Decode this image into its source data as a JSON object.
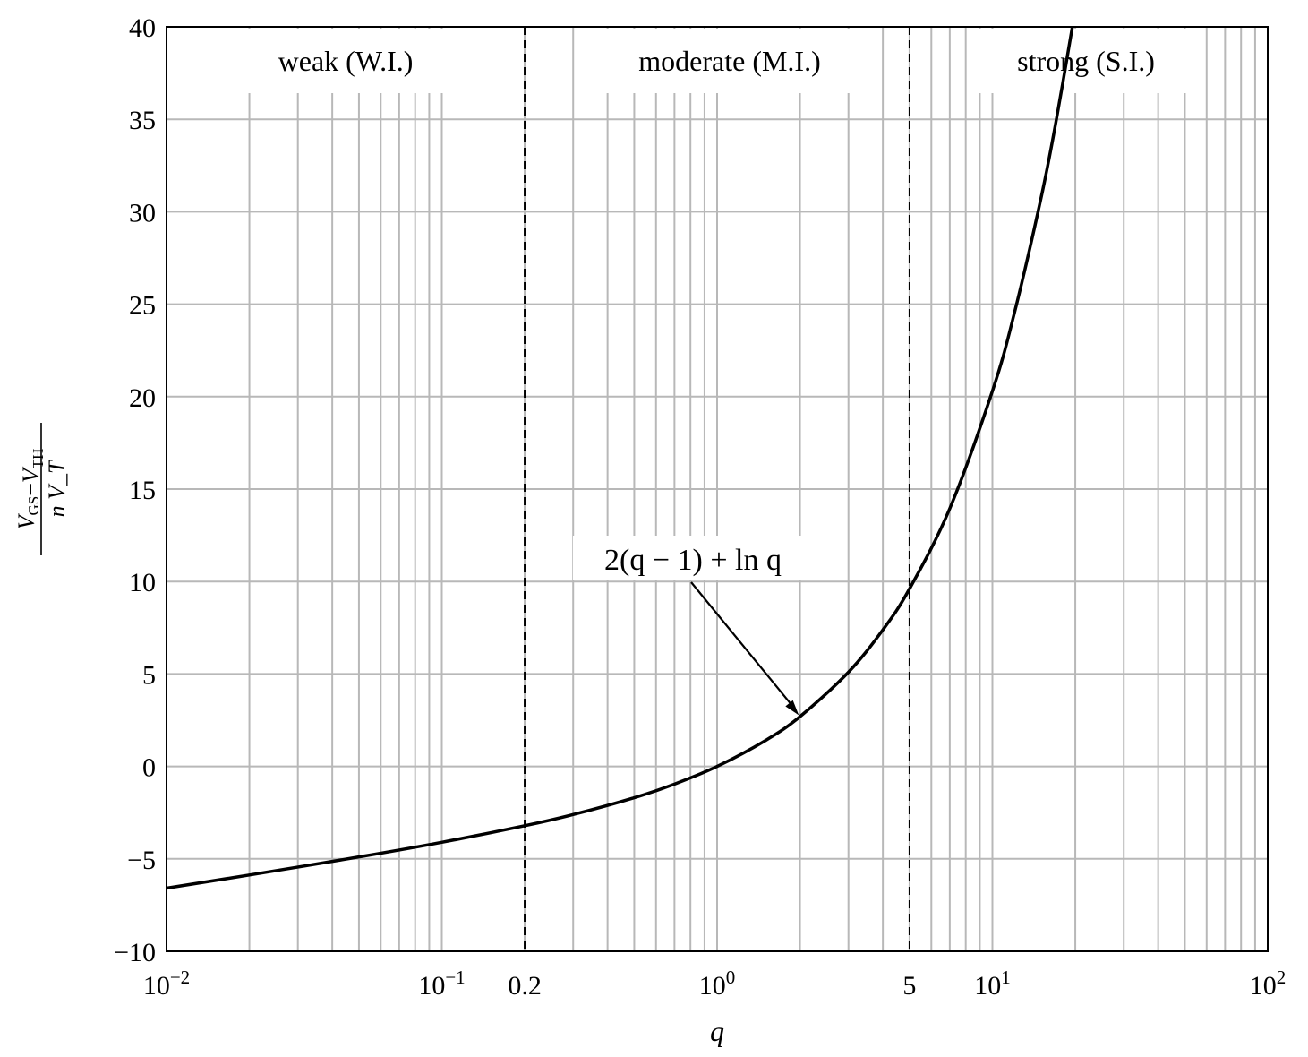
{
  "chart_data": {
    "type": "line",
    "xlabel": "q",
    "ylabel": {
      "numerator": "V_GS − V_TH",
      "denominator": "n V_T"
    },
    "x_scale": "log",
    "xlim": [
      0.01,
      100
    ],
    "ylim": [
      -10,
      40
    ],
    "grid": true,
    "x_ticks": [
      {
        "value": 0.01,
        "base": "10",
        "exp": "−2"
      },
      {
        "value": 0.1,
        "base": "10",
        "exp": "−1"
      },
      {
        "value": 0.2,
        "text": "0.2"
      },
      {
        "value": 1,
        "base": "10",
        "exp": "0"
      },
      {
        "value": 5,
        "text": "5"
      },
      {
        "value": 10,
        "base": "10",
        "exp": "1"
      },
      {
        "value": 100,
        "base": "10",
        "exp": "2"
      }
    ],
    "y_ticks": [
      "−10",
      "−5",
      "0",
      "5",
      "10",
      "15",
      "20",
      "25",
      "30",
      "35",
      "40"
    ],
    "y_tick_values": [
      -10,
      -5,
      0,
      5,
      10,
      15,
      20,
      25,
      30,
      35,
      40
    ],
    "region_boundaries": [
      0.2,
      5
    ],
    "regions": [
      "weak (W.I.)",
      "moderate (M.I.)",
      "strong (S.I.)"
    ],
    "series": [
      {
        "formula": "2(q − 1) + ln q",
        "x": [
          0.01,
          0.02,
          0.05,
          0.1,
          0.2,
          0.3,
          0.5,
          0.7,
          1,
          1.5,
          2,
          3,
          4,
          5,
          7,
          10,
          12,
          15,
          17,
          19.5
        ],
        "y": [
          -6.585,
          -5.872,
          -4.896,
          -4.103,
          -3.209,
          -2.604,
          -1.693,
          -0.957,
          0,
          1.405,
          2.693,
          5.099,
          7.386,
          9.609,
          13.946,
          20.303,
          24.485,
          30.708,
          34.833,
          39.97
        ]
      }
    ],
    "annotation": {
      "text": "2(q − 1) + ln q",
      "points_to": {
        "x": 2,
        "y": 2.693
      }
    }
  }
}
